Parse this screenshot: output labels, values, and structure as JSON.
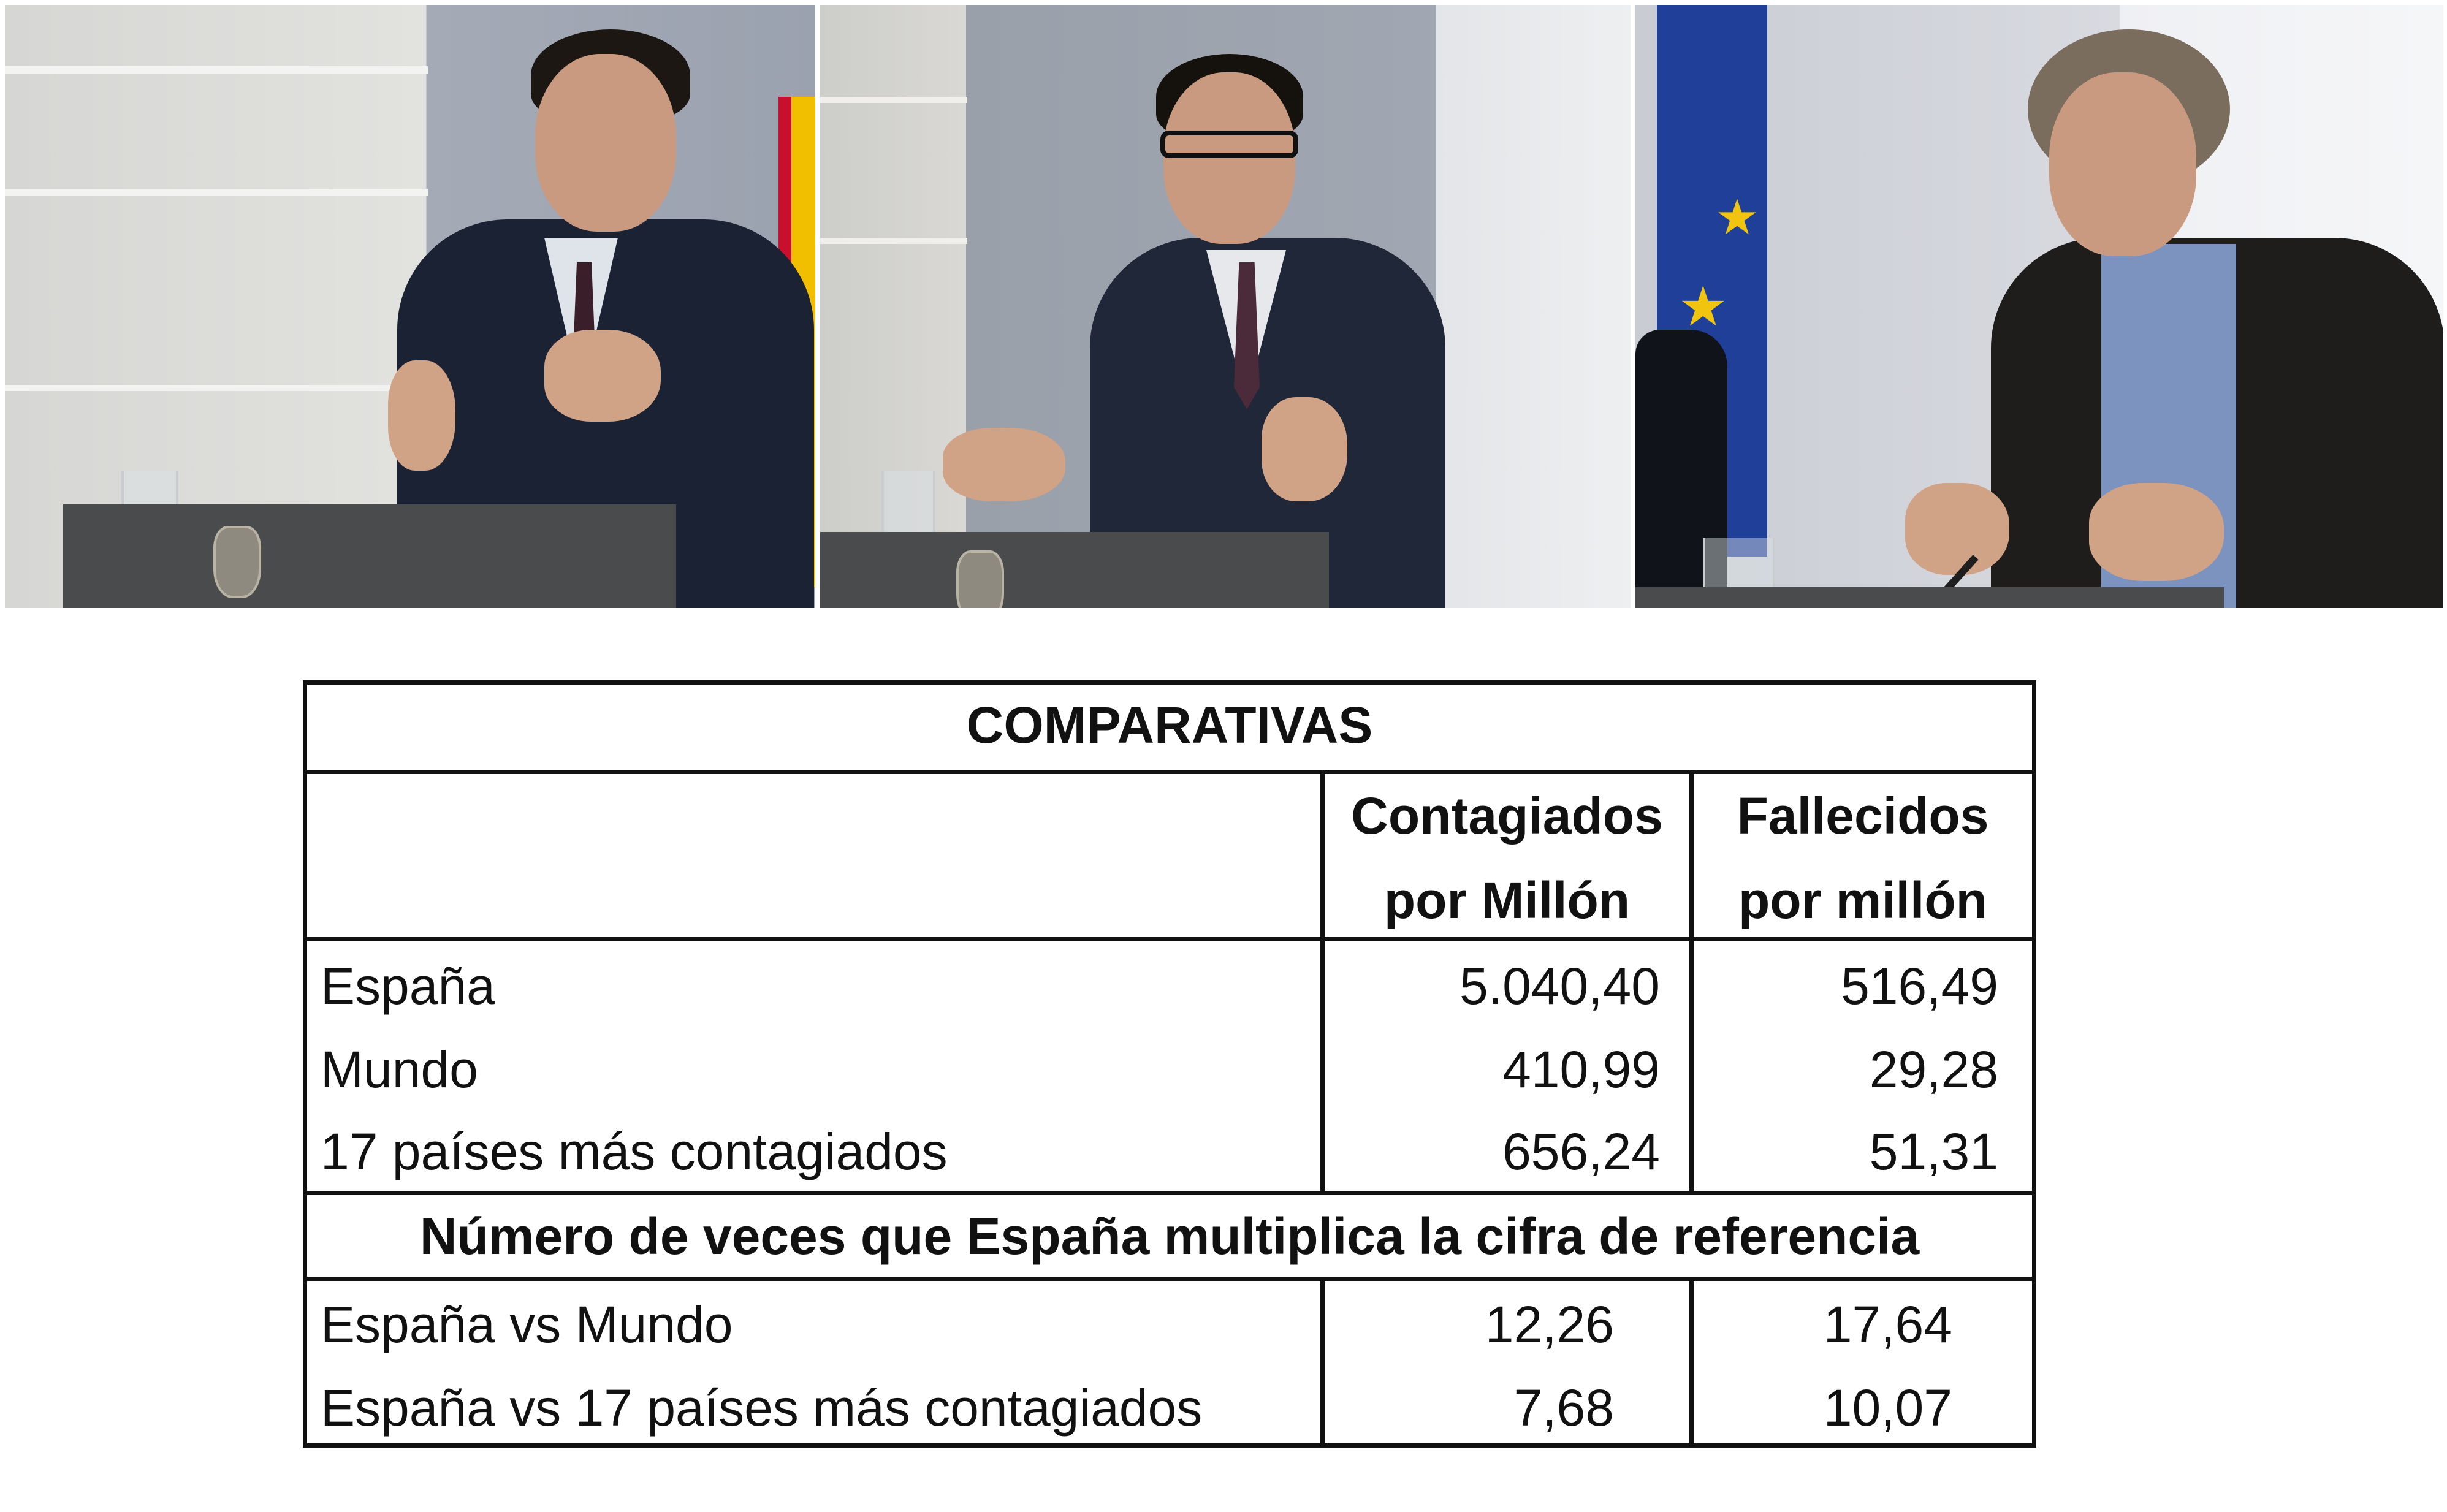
{
  "table": {
    "title": "COMPARATIVAS",
    "headers": {
      "infected_l1": "Contagiados",
      "infected_l2": "por Millón",
      "deaths_l1": "Fallecidos",
      "deaths_l2": "por millón"
    },
    "rows": [
      {
        "label": "España",
        "infected": "5.040,40",
        "deaths": "516,49"
      },
      {
        "label": "Mundo",
        "infected": "410,99",
        "deaths": "29,28"
      },
      {
        "label": "17 países más contagiados",
        "infected": "656,24",
        "deaths": "51,31"
      }
    ],
    "section_title": "Número de veces que España multiplica la cifra de referencia",
    "ratio_rows": [
      {
        "label": "España vs Mundo",
        "infected": "12,26",
        "deaths": "17,64"
      },
      {
        "label": "España vs 17 países más contagiados",
        "infected": "7,68",
        "deaths": "10,07"
      }
    ]
  },
  "photos": [
    {
      "name": "photo-speaker-1",
      "colors": {
        "wall": "#d8d8d6",
        "panel": "#9ea4b0",
        "suit": "#1b2233"
      }
    },
    {
      "name": "photo-speaker-2",
      "colors": {
        "wall": "#cfcfcc",
        "panel": "#9aa0aa",
        "suit": "#1f2738"
      }
    },
    {
      "name": "photo-speaker-3",
      "colors": {
        "wall": "#e3e4e8",
        "panel": "#c8cbd2",
        "suit": "#1e1d1b"
      }
    }
  ]
}
